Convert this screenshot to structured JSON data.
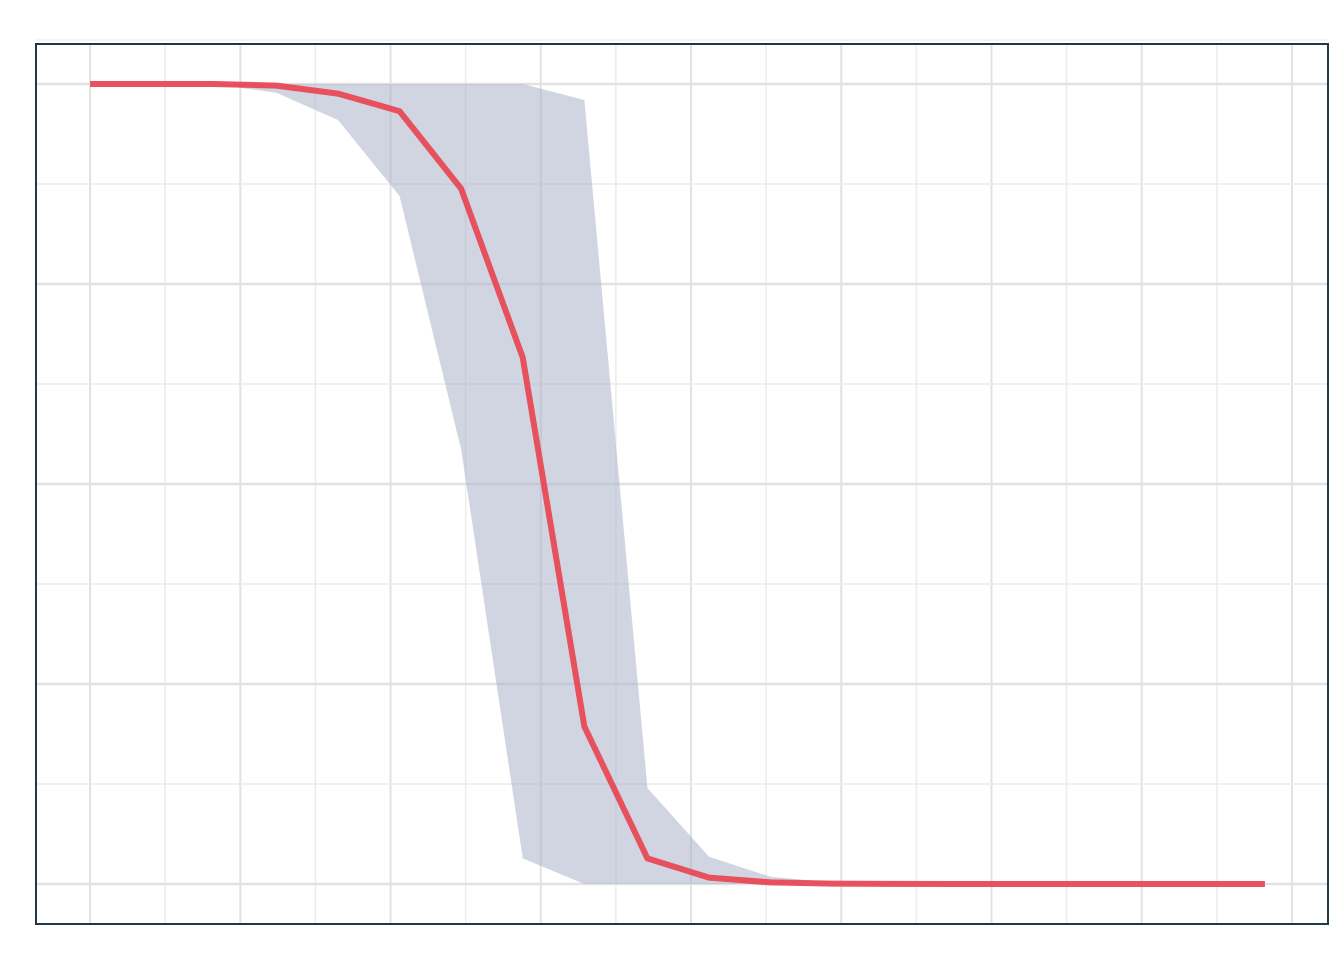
{
  "chart_data": {
    "type": "line",
    "title": "",
    "xlabel": "",
    "ylabel": "",
    "xlim": [
      -0.36,
      8.24
    ],
    "ylim": [
      -0.05,
      1.05
    ],
    "grid": true,
    "legend": "none",
    "x": [
      0,
      0.41,
      0.82,
      1.24,
      1.65,
      2.06,
      2.47,
      2.88,
      3.29,
      3.71,
      4.12,
      4.53,
      4.94,
      5.35,
      5.76,
      6.18,
      6.59,
      7.0,
      7.41,
      7.82
    ],
    "series": [
      {
        "role": "estimate",
        "color": "#e84955",
        "values": [
          1.0,
          1.0,
          1.0,
          0.998,
          0.988,
          0.966,
          0.869,
          0.658,
          0.197,
          0.032,
          0.008,
          0.002,
          0.0005,
          0.0001,
          0.0,
          0.0,
          0.0,
          0.0,
          0.0,
          0.0
        ]
      },
      {
        "role": "interval-lower",
        "color": "#aab2c8",
        "values": [
          1.0,
          1.0,
          1.0,
          0.989,
          0.955,
          0.86,
          0.543,
          0.032,
          0.0,
          0.0,
          0.0,
          0.0,
          0.0,
          0.0,
          0.0,
          0.0,
          0.0,
          0.0,
          0.0,
          0.0
        ]
      },
      {
        "role": "interval-upper",
        "color": "#aab2c8",
        "values": [
          1.0,
          1.0,
          1.0,
          1.0,
          1.0,
          1.0,
          1.0,
          1.0,
          0.98,
          0.12,
          0.034,
          0.009,
          0.002,
          0.0005,
          0.0001,
          0.0,
          0.0,
          0.0,
          0.0,
          0.0
        ]
      }
    ]
  }
}
